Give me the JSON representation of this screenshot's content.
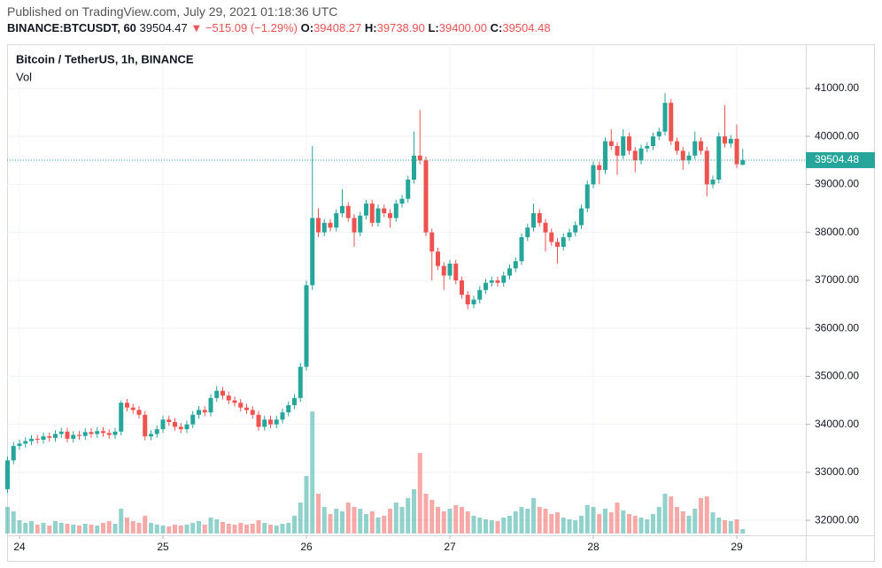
{
  "header": {
    "published": "Published on TradingView.com, July 29, 2021 01:18:36 UTC",
    "symbol": "BINANCE:BTCUSDT, 60",
    "last": "39504.47",
    "arrow": "▼",
    "change": "−515.09 (−1.29%)",
    "o_label": "O:",
    "o_value": "39408.27",
    "h_label": "H:",
    "h_value": "39738.90",
    "l_label": "L:",
    "l_value": "39400.00",
    "c_label": "C:",
    "c_value": "39504.48"
  },
  "chart_data": {
    "type": "candlestick",
    "title": "Bitcoin / TetherUS, 1h, BINANCE",
    "volume_label": "Vol",
    "up_color": "#26a69a",
    "down_color": "#ef5350",
    "grid": true,
    "ylim": [
      31690,
      41920
    ],
    "yticks": [
      {
        "value": 32000,
        "label": "32000.00"
      },
      {
        "value": 33000,
        "label": "33000.00"
      },
      {
        "value": 34000,
        "label": "34000.00"
      },
      {
        "value": 35000,
        "label": "35000.00"
      },
      {
        "value": 36000,
        "label": "36000.00"
      },
      {
        "value": 37000,
        "label": "37000.00"
      },
      {
        "value": 38000,
        "label": "38000.00"
      },
      {
        "value": 39000,
        "label": "39000.00"
      },
      {
        "value": 40000,
        "label": "40000.00"
      },
      {
        "value": 41000,
        "label": "41000.00"
      }
    ],
    "xticks": [
      {
        "value": 2,
        "label": "24"
      },
      {
        "value": 26,
        "label": "25"
      },
      {
        "value": 50,
        "label": "26"
      },
      {
        "value": 74,
        "label": "27"
      },
      {
        "value": 98,
        "label": "28"
      },
      {
        "value": 122,
        "label": "29"
      }
    ],
    "open": [
      32650,
      33250,
      33550,
      33600,
      33650,
      33700,
      33680,
      33750,
      33720,
      33800,
      33850,
      33700,
      33780,
      33760,
      33840,
      33800,
      33860,
      33820,
      33780,
      33850,
      34450,
      34350,
      34300,
      34200,
      33750,
      33800,
      33900,
      34100,
      34050,
      33950,
      33900,
      34000,
      34200,
      34300,
      34250,
      34550,
      34700,
      34600,
      34500,
      34450,
      34350,
      34300,
      34200,
      33950,
      34100,
      34000,
      34100,
      34250,
      34400,
      34550,
      35200,
      36900,
      38300,
      38000,
      38200,
      38100,
      38400,
      38550,
      38300,
      38000,
      38350,
      38600,
      38200,
      38500,
      38400,
      38300,
      38600,
      38700,
      39100,
      39600,
      39500,
      38000,
      37600,
      37300,
      37100,
      37350,
      37000,
      36700,
      36500,
      36600,
      36800,
      36950,
      37000,
      36950,
      37100,
      37250,
      37400,
      37900,
      38100,
      38400,
      38200,
      38000,
      37800,
      37700,
      37900,
      38000,
      38150,
      38500,
      39000,
      39400,
      39300,
      39900,
      39800,
      39600,
      40000,
      39700,
      39500,
      39750,
      39800,
      40000,
      40100,
      40700,
      39900,
      39700,
      39500,
      39600,
      39900,
      39700,
      39000,
      39100,
      40000,
      39850,
      39950,
      39408.27
    ],
    "high": [
      33330,
      33630,
      33680,
      33730,
      33780,
      33780,
      33830,
      33830,
      33880,
      33930,
      33930,
      33860,
      33860,
      33920,
      33920,
      33940,
      33940,
      33900,
      33930,
      34500,
      34530,
      34430,
      34380,
      34280,
      33880,
      33980,
      34180,
      34180,
      34130,
      34030,
      34080,
      34280,
      34380,
      34380,
      34630,
      34800,
      34780,
      34680,
      34580,
      34530,
      34430,
      34380,
      34280,
      34180,
      34180,
      34180,
      34330,
      34480,
      34630,
      35280,
      37000,
      39800,
      38500,
      38280,
      38280,
      38480,
      38900,
      38630,
      38380,
      38430,
      38680,
      38680,
      38580,
      38580,
      38480,
      38680,
      38780,
      39180,
      40100,
      40550,
      39580,
      38080,
      37680,
      37380,
      37430,
      37430,
      37080,
      36780,
      36680,
      36880,
      37030,
      37080,
      37080,
      37180,
      37330,
      37480,
      37980,
      38180,
      38600,
      38480,
      38280,
      38080,
      37880,
      37980,
      38080,
      38230,
      38580,
      39080,
      39480,
      39480,
      39980,
      40150,
      39880,
      40150,
      40080,
      39780,
      39830,
      39880,
      40080,
      40180,
      40900,
      40780,
      39980,
      39780,
      39680,
      40100,
      39980,
      39780,
      39180,
      40080,
      40650,
      40030,
      40250,
      39738.9
    ],
    "low": [
      32570,
      33170,
      33470,
      33520,
      33570,
      33600,
      33600,
      33640,
      33640,
      33720,
      33620,
      33620,
      33680,
      33680,
      33720,
      33720,
      33740,
      33700,
      33700,
      33770,
      34270,
      34220,
      34120,
      33670,
      33670,
      33720,
      33820,
      33970,
      33870,
      33820,
      33820,
      33920,
      34120,
      34170,
      34170,
      34470,
      34520,
      34420,
      34370,
      34270,
      34220,
      34120,
      33870,
      33870,
      33920,
      33920,
      34020,
      34170,
      34320,
      34470,
      35120,
      36800,
      37900,
      37920,
      38020,
      38020,
      38320,
      38220,
      37700,
      37920,
      38270,
      38120,
      38120,
      38320,
      38100,
      38220,
      38520,
      38620,
      39020,
      39420,
      37920,
      37000,
      37220,
      36800,
      37020,
      36920,
      36620,
      36400,
      36420,
      36520,
      36720,
      36870,
      36870,
      36870,
      37020,
      37170,
      37320,
      37820,
      38020,
      38120,
      37600,
      37720,
      37350,
      37620,
      37820,
      37920,
      38070,
      38420,
      38920,
      39000,
      39220,
      39720,
      39200,
      39520,
      39620,
      39250,
      39420,
      39670,
      39720,
      39920,
      40020,
      39820,
      39620,
      39300,
      39420,
      39520,
      39620,
      38750,
      38920,
      39020,
      39770,
      39770,
      39340,
      39400
    ],
    "close": [
      33250,
      33550,
      33600,
      33650,
      33700,
      33680,
      33750,
      33720,
      33800,
      33850,
      33700,
      33780,
      33760,
      33840,
      33800,
      33860,
      33820,
      33780,
      33850,
      34450,
      34350,
      34300,
      34200,
      33750,
      33800,
      33900,
      34100,
      34050,
      33950,
      33900,
      34000,
      34200,
      34300,
      34250,
      34550,
      34700,
      34600,
      34500,
      34450,
      34350,
      34300,
      34200,
      33950,
      34100,
      34000,
      34100,
      34250,
      34400,
      34550,
      35200,
      36900,
      38300,
      38000,
      38200,
      38100,
      38400,
      38550,
      38300,
      38000,
      38350,
      38600,
      38200,
      38500,
      38400,
      38300,
      38600,
      38700,
      39100,
      39600,
      39500,
      38000,
      37600,
      37300,
      37100,
      37350,
      37000,
      36700,
      36500,
      36600,
      36800,
      36950,
      37000,
      36950,
      37100,
      37250,
      37400,
      37900,
      38100,
      38400,
      38200,
      38000,
      37800,
      37700,
      37900,
      38000,
      38150,
      38500,
      39000,
      39400,
      39300,
      39900,
      39800,
      39600,
      40000,
      39700,
      39500,
      39750,
      39800,
      40000,
      40100,
      40700,
      39900,
      39700,
      39500,
      39600,
      39900,
      39700,
      39000,
      39100,
      40000,
      39850,
      39950,
      39420,
      39504.48
    ],
    "volume": [
      30,
      25,
      15,
      12,
      14,
      10,
      12,
      9,
      14,
      12,
      11,
      10,
      9,
      11,
      10,
      9,
      12,
      14,
      11,
      28,
      18,
      14,
      12,
      20,
      12,
      10,
      9,
      8,
      10,
      9,
      10,
      12,
      14,
      10,
      18,
      16,
      13,
      11,
      10,
      12,
      10,
      11,
      15,
      12,
      10,
      9,
      11,
      12,
      20,
      35,
      65,
      138,
      45,
      30,
      22,
      28,
      25,
      35,
      30,
      28,
      22,
      25,
      18,
      20,
      28,
      35,
      30,
      40,
      50,
      91,
      45,
      38,
      30,
      25,
      28,
      32,
      30,
      25,
      20,
      18,
      16,
      15,
      14,
      18,
      20,
      25,
      30,
      28,
      40,
      30,
      28,
      22,
      24,
      18,
      16,
      15,
      20,
      32,
      30,
      22,
      28,
      24,
      35,
      26,
      22,
      20,
      18,
      16,
      22,
      30,
      45,
      42,
      30,
      25,
      20,
      28,
      40,
      42,
      24,
      18,
      15,
      14,
      16,
      5
    ]
  }
}
